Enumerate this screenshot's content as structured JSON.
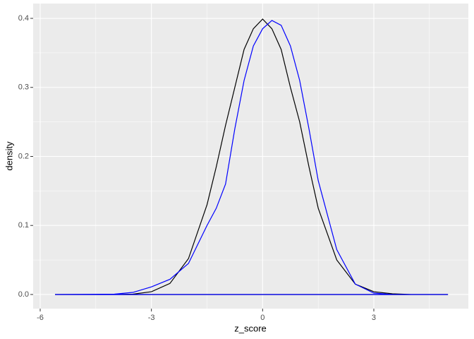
{
  "chart_data": {
    "type": "line",
    "xlabel": "z_score",
    "ylabel": "density",
    "x": [
      -5.6,
      -4,
      -3.5,
      -3,
      -2.5,
      -2,
      -1.5,
      -1.25,
      -1,
      -0.75,
      -0.5,
      -0.25,
      0,
      0.25,
      0.5,
      0.75,
      1,
      1.25,
      1.5,
      2,
      2.5,
      3,
      3.5,
      4,
      5
    ],
    "series": [
      {
        "color": "#000000",
        "values": [
          0,
          0,
          0.0005,
          0.004,
          0.016,
          0.052,
          0.13,
          0.185,
          0.245,
          0.3,
          0.355,
          0.385,
          0.399,
          0.385,
          0.355,
          0.3,
          0.25,
          0.185,
          0.125,
          0.05,
          0.015,
          0.004,
          0.001,
          0,
          0
        ]
      },
      {
        "color": "#0000ff",
        "values": [
          0,
          0.0005,
          0.003,
          0.011,
          0.022,
          0.045,
          0.1,
          0.125,
          0.16,
          0.24,
          0.31,
          0.36,
          0.385,
          0.397,
          0.39,
          0.36,
          0.31,
          0.24,
          0.165,
          0.065,
          0.015,
          0.002,
          0,
          0,
          0
        ]
      }
    ],
    "xlim": [
      -6.19,
      5.55
    ],
    "xticks": [
      -6,
      -3,
      0,
      3
    ],
    "ylim": [
      -0.0205,
      0.4215
    ],
    "yticks": [
      {
        "value": 0,
        "label": "0.0"
      },
      0.1,
      0.2,
      0.3,
      0.4
    ],
    "grid": true,
    "minor_grid": true,
    "panel_color": "#ebebeb"
  }
}
